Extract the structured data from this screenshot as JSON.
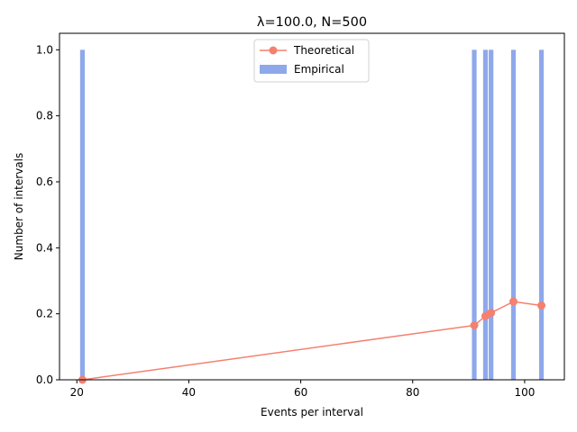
{
  "chart_data": {
    "type": "bar",
    "title": "λ=100.0, N=500",
    "xlabel": "Events per interval",
    "ylabel": "Number of intervals",
    "xlim": [
      16.9,
      107.1
    ],
    "ylim": [
      0,
      1.05
    ],
    "xticks": [
      20,
      40,
      60,
      80,
      100
    ],
    "yticks": [
      0.0,
      0.2,
      0.4,
      0.6,
      0.8,
      1.0
    ],
    "xtick_labels": [
      "20",
      "40",
      "60",
      "80",
      "100"
    ],
    "ytick_labels": [
      "0.0",
      "0.2",
      "0.4",
      "0.6",
      "0.8",
      "1.0"
    ],
    "grid": false,
    "legend_position": "top-center",
    "series": [
      {
        "name": "Empirical",
        "kind": "bar",
        "color": "#8ea8ea",
        "x": [
          21,
          91,
          93,
          94,
          98,
          103
        ],
        "values": [
          1.0,
          1.0,
          1.0,
          1.0,
          1.0,
          1.0
        ]
      },
      {
        "name": "Theoretical",
        "kind": "line",
        "marker": "circle",
        "color": "#f4806f",
        "x": [
          21,
          91,
          93,
          94,
          98,
          103
        ],
        "values": [
          0.0,
          0.165,
          0.193,
          0.203,
          0.237,
          0.225
        ]
      }
    ],
    "legend_order": [
      "Theoretical",
      "Empirical"
    ]
  }
}
